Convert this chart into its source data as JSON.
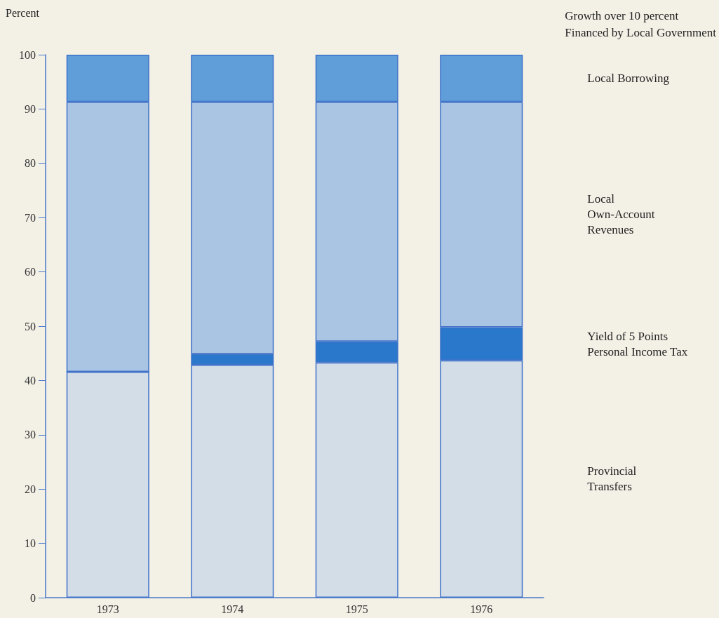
{
  "chart_data": {
    "type": "bar",
    "stacked": true,
    "ylabel": "Percent",
    "annotations": [
      "Growth over 10 percent\nFinanced by Local Government"
    ],
    "categories": [
      "1973",
      "1974",
      "1975",
      "1976"
    ],
    "series": [
      {
        "name": "Provincial\nTransfers",
        "color": "#d3dde8",
        "values": [
          41.6,
          42.9,
          43.3,
          43.7
        ]
      },
      {
        "name": "Yield of 5 Points\nPersonal Income Tax",
        "color": "#2a78cc",
        "values": [
          0,
          2.0,
          3.9,
          6.1
        ]
      },
      {
        "name": "Local\nOwn-Account\nRevenues",
        "color": "#a9c5e3",
        "values": [
          49.7,
          46.4,
          44.1,
          41.5
        ]
      },
      {
        "name": "Local Borrowing",
        "color": "#5f9ed8",
        "values": [
          8.7,
          8.7,
          8.7,
          8.7
        ]
      }
    ],
    "ylim": [
      0,
      100
    ],
    "yticks": [
      0,
      10,
      20,
      30,
      40,
      50,
      60,
      70,
      80,
      90,
      100
    ],
    "grid": false,
    "legend": false
  }
}
